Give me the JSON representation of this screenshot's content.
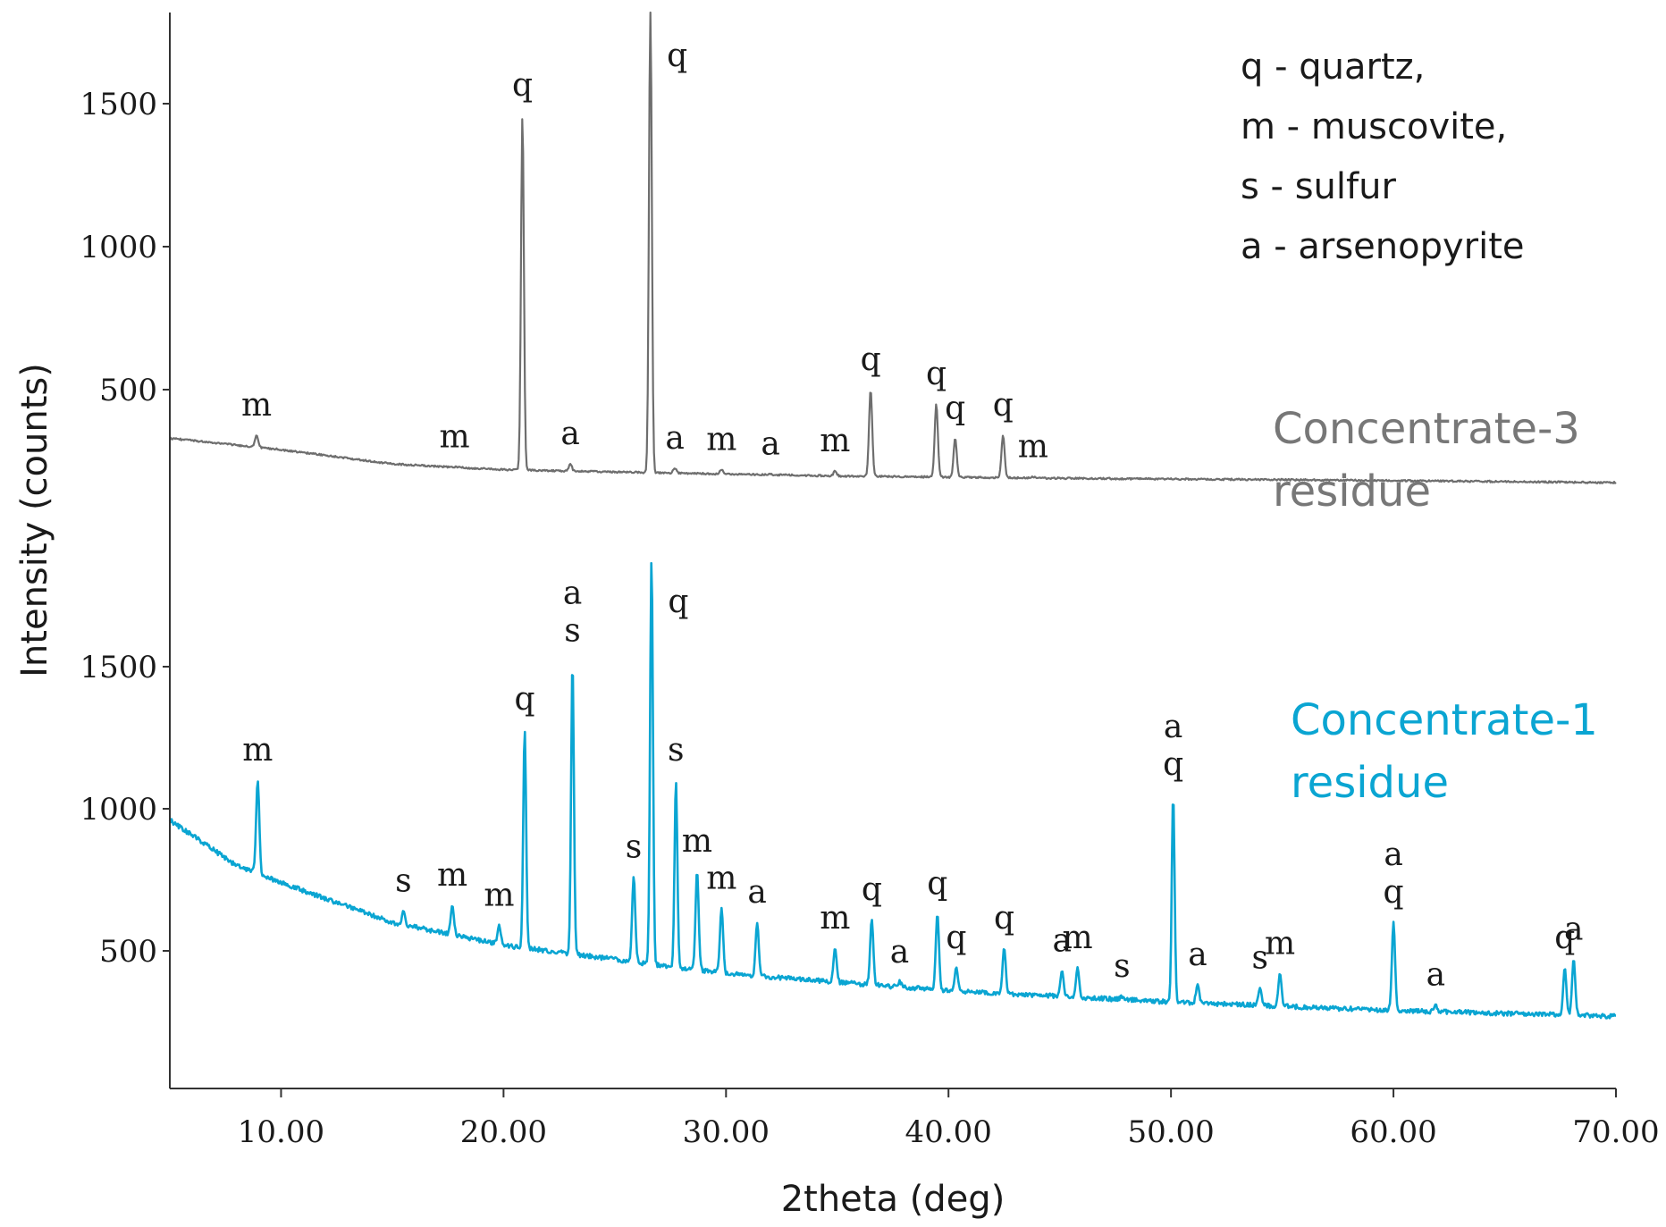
{
  "chart_data": {
    "type": "line",
    "xlabel": "2theta (deg)",
    "ylabel": "Intensity (counts)",
    "xlim": [
      5,
      70
    ],
    "x_ticks": [
      "10.00",
      "20.00",
      "30.00",
      "40.00",
      "50.00",
      "60.00",
      "70.00"
    ],
    "x_tick_values": [
      10,
      20,
      30,
      40,
      50,
      60,
      70
    ],
    "legend": [
      "q - quartz,",
      "m - muscovite,",
      "s - sulfur",
      "a - arsenopyrite"
    ],
    "panels": [
      {
        "name": "upper",
        "ylim": [
          0,
          1850
        ],
        "y_ticks": [
          "500",
          "1000",
          "1500"
        ],
        "y_tick_values": [
          500,
          1000,
          1500
        ]
      },
      {
        "name": "lower",
        "ylim": [
          0,
          1850
        ],
        "y_ticks": [
          "500",
          "1000",
          "1500"
        ],
        "y_tick_values": [
          500,
          1000,
          1500
        ]
      }
    ],
    "series": [
      {
        "name": "Concentrate-3 residue",
        "label_lines": [
          "Concentrate-3",
          "residue"
        ],
        "panel": "upper",
        "color": "#6e6e6e",
        "baseline": [
          [
            5,
            330
          ],
          [
            10,
            290
          ],
          [
            15,
            240
          ],
          [
            20,
            220
          ],
          [
            25,
            212
          ],
          [
            30,
            205
          ],
          [
            35,
            198
          ],
          [
            45,
            190
          ],
          [
            55,
            185
          ],
          [
            70,
            175
          ]
        ],
        "peaks": [
          {
            "x": 8.9,
            "y": 340,
            "label": [
              "m"
            ]
          },
          {
            "x": 17.8,
            "y": 230,
            "label": [
              "m"
            ]
          },
          {
            "x": 20.85,
            "y": 1460,
            "label": [
              "q"
            ]
          },
          {
            "x": 23.0,
            "y": 240,
            "label": [
              "a"
            ]
          },
          {
            "x": 26.6,
            "y": 1850,
            "label": [
              "q"
            ]
          },
          {
            "x": 27.7,
            "y": 225,
            "label": [
              "a"
            ]
          },
          {
            "x": 29.8,
            "y": 220,
            "label": [
              "m"
            ]
          },
          {
            "x": 32.0,
            "y": 205,
            "label": [
              "a"
            ]
          },
          {
            "x": 34.9,
            "y": 215,
            "label": [
              "m"
            ]
          },
          {
            "x": 36.5,
            "y": 500,
            "label": [
              "q"
            ]
          },
          {
            "x": 39.45,
            "y": 450,
            "label": [
              "q"
            ]
          },
          {
            "x": 40.3,
            "y": 330,
            "label": [
              "q"
            ]
          },
          {
            "x": 42.45,
            "y": 340,
            "label": [
              "q"
            ]
          },
          {
            "x": 43.8,
            "y": 195,
            "label": [
              "m"
            ]
          }
        ]
      },
      {
        "name": "Concentrate-1 residue",
        "label_lines": [
          "Concentrate-1",
          "residue"
        ],
        "panel": "lower",
        "color": "#0aa5d2",
        "baseline": [
          [
            5,
            960
          ],
          [
            8,
            800
          ],
          [
            10,
            740
          ],
          [
            15,
            600
          ],
          [
            20,
            520
          ],
          [
            25,
            470
          ],
          [
            30,
            420
          ],
          [
            35,
            390
          ],
          [
            40,
            360
          ],
          [
            45,
            340
          ],
          [
            50,
            320
          ],
          [
            55,
            305
          ],
          [
            60,
            290
          ],
          [
            65,
            280
          ],
          [
            70,
            270
          ]
        ],
        "peaks": [
          {
            "x": 8.95,
            "y": 1100,
            "label": [
              "m"
            ]
          },
          {
            "x": 15.5,
            "y": 640,
            "label": [
              "s"
            ]
          },
          {
            "x": 17.7,
            "y": 660,
            "label": [
              "m"
            ]
          },
          {
            "x": 19.8,
            "y": 590,
            "label": [
              "m"
            ]
          },
          {
            "x": 20.95,
            "y": 1280,
            "label": [
              "q"
            ]
          },
          {
            "x": 23.1,
            "y": 1520,
            "label": [
              "s",
              "a"
            ]
          },
          {
            "x": 25.85,
            "y": 760,
            "label": [
              "s"
            ]
          },
          {
            "x": 26.65,
            "y": 1880,
            "label": [
              "q"
            ]
          },
          {
            "x": 27.75,
            "y": 1100,
            "label": [
              "s"
            ]
          },
          {
            "x": 28.7,
            "y": 780,
            "label": [
              "m"
            ]
          },
          {
            "x": 29.8,
            "y": 650,
            "label": [
              "m"
            ]
          },
          {
            "x": 31.4,
            "y": 600,
            "label": [
              "a"
            ]
          },
          {
            "x": 34.9,
            "y": 510,
            "label": [
              "m"
            ]
          },
          {
            "x": 36.55,
            "y": 610,
            "label": [
              "q"
            ]
          },
          {
            "x": 37.8,
            "y": 390,
            "label": [
              "a"
            ]
          },
          {
            "x": 39.5,
            "y": 630,
            "label": [
              "q"
            ]
          },
          {
            "x": 40.35,
            "y": 440,
            "label": [
              "q"
            ]
          },
          {
            "x": 42.5,
            "y": 510,
            "label": [
              "q"
            ]
          },
          {
            "x": 45.1,
            "y": 430,
            "label": [
              "a"
            ]
          },
          {
            "x": 45.8,
            "y": 440,
            "label": [
              "m"
            ]
          },
          {
            "x": 47.8,
            "y": 340,
            "label": [
              "s"
            ]
          },
          {
            "x": 50.1,
            "y": 1050,
            "label": [
              "q",
              "a"
            ]
          },
          {
            "x": 51.2,
            "y": 380,
            "label": [
              "a"
            ]
          },
          {
            "x": 54.0,
            "y": 370,
            "label": [
              "s"
            ]
          },
          {
            "x": 54.9,
            "y": 420,
            "label": [
              "m"
            ]
          },
          {
            "x": 60.0,
            "y": 600,
            "label": [
              "q",
              "a"
            ]
          },
          {
            "x": 61.9,
            "y": 310,
            "label": [
              "a"
            ]
          },
          {
            "x": 67.7,
            "y": 440,
            "label": [
              "q"
            ]
          },
          {
            "x": 68.1,
            "y": 470,
            "label": [
              "a"
            ]
          }
        ]
      }
    ]
  }
}
